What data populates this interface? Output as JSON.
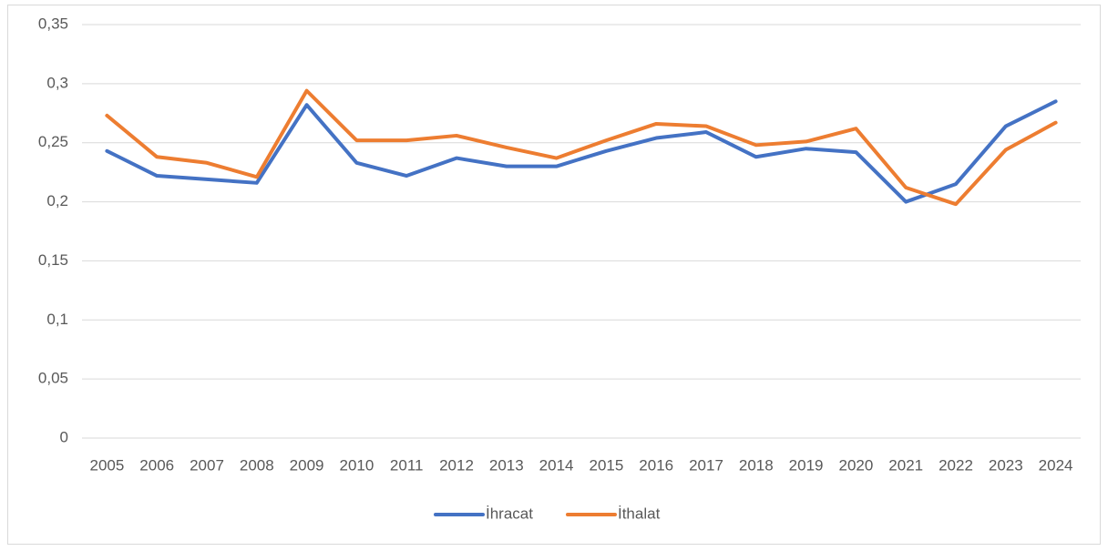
{
  "chart_data": {
    "type": "line",
    "categories": [
      "2005",
      "2006",
      "2007",
      "2008",
      "2009",
      "2010",
      "2011",
      "2012",
      "2013",
      "2014",
      "2015",
      "2016",
      "2017",
      "2018",
      "2019",
      "2020",
      "2021",
      "2022",
      "2023",
      "2024"
    ],
    "series": [
      {
        "name": "İhracat",
        "color": "#4472c4",
        "values": [
          0.243,
          0.222,
          0.219,
          0.216,
          0.282,
          0.233,
          0.222,
          0.237,
          0.23,
          0.23,
          0.243,
          0.254,
          0.259,
          0.238,
          0.245,
          0.242,
          0.2,
          0.215,
          0.264,
          0.285
        ]
      },
      {
        "name": "İthalat",
        "color": "#ed7d31",
        "values": [
          0.273,
          0.238,
          0.233,
          0.221,
          0.294,
          0.252,
          0.252,
          0.256,
          0.246,
          0.237,
          0.252,
          0.266,
          0.264,
          0.248,
          0.251,
          0.262,
          0.212,
          0.198,
          0.244,
          0.267
        ]
      }
    ],
    "ylim": [
      0,
      0.35
    ],
    "yticks": [
      0,
      {
        "value": 0.05,
        "label": "0,05"
      },
      {
        "value": 0.1,
        "label": "0,1"
      },
      {
        "value": 0.15,
        "label": "0,15"
      },
      {
        "value": 0.2,
        "label": "0,2"
      },
      {
        "value": 0.25,
        "label": "0,25"
      },
      {
        "value": 0.3,
        "label": "0,3"
      },
      {
        "value": 0.35,
        "label": "0,35"
      }
    ],
    "grid": true,
    "legend": "bottom"
  }
}
